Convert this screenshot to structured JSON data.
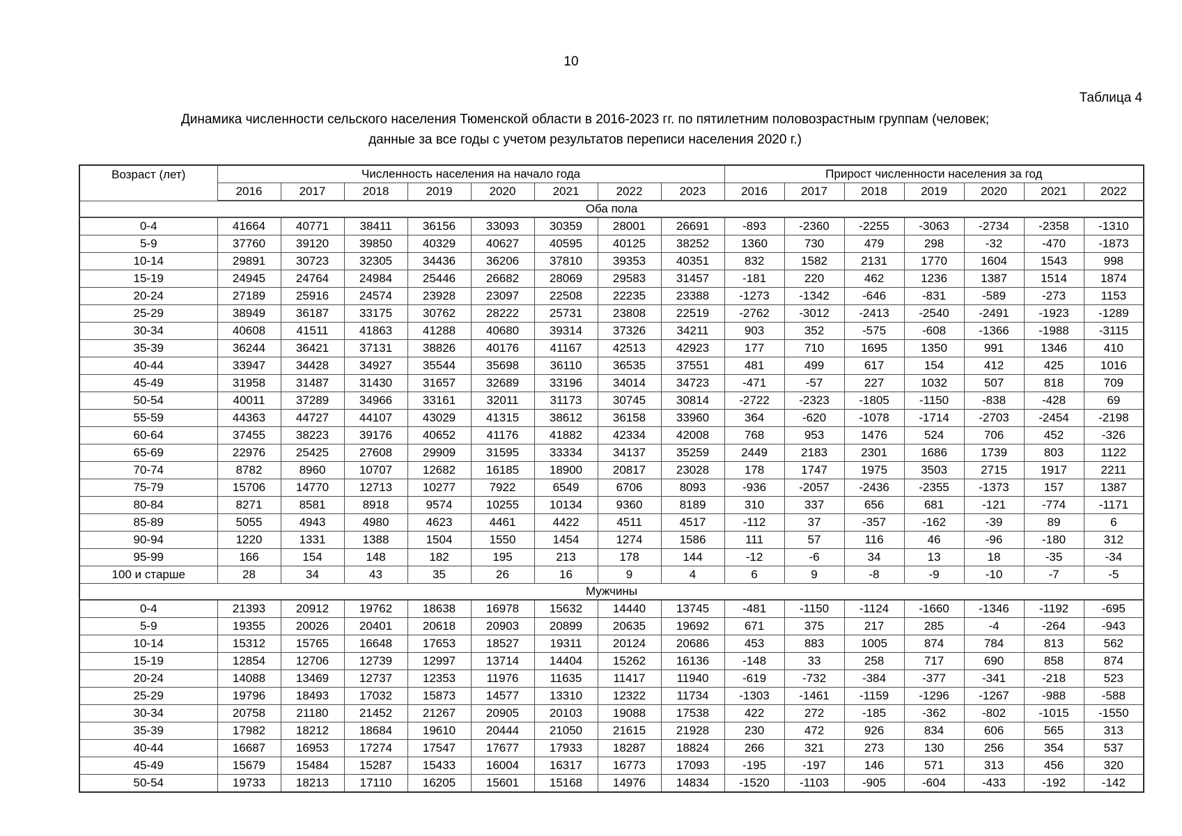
{
  "page": {
    "number": "10",
    "table_label": "Таблица 4",
    "title_line1": "Динамика численности сельского населения Тюменской области в 2016-2023 гг. по пятилетним половозрастным группам (человек;",
    "title_line2": "данные за все годы с учетом результатов переписи населения 2020 г.)"
  },
  "table": {
    "age_header": "Возраст (лет)",
    "population_group_header": "Численность населения на начало года",
    "growth_group_header": "Прирост численности населения за год",
    "population_years": [
      "2016",
      "2017",
      "2018",
      "2019",
      "2020",
      "2021",
      "2022",
      "2023"
    ],
    "growth_years": [
      "2016",
      "2017",
      "2018",
      "2019",
      "2020",
      "2021",
      "2022"
    ],
    "sections": [
      {
        "label": "Оба пола",
        "rows": [
          {
            "age": "0-4",
            "population": [
              41664,
              40771,
              38411,
              36156,
              33093,
              30359,
              28001,
              26691
            ],
            "growth": [
              -893,
              -2360,
              -2255,
              -3063,
              -2734,
              -2358,
              -1310
            ]
          },
          {
            "age": "5-9",
            "population": [
              37760,
              39120,
              39850,
              40329,
              40627,
              40595,
              40125,
              38252
            ],
            "growth": [
              1360,
              730,
              479,
              298,
              -32,
              -470,
              -1873
            ]
          },
          {
            "age": "10-14",
            "population": [
              29891,
              30723,
              32305,
              34436,
              36206,
              37810,
              39353,
              40351
            ],
            "growth": [
              832,
              1582,
              2131,
              1770,
              1604,
              1543,
              998
            ]
          },
          {
            "age": "15-19",
            "population": [
              24945,
              24764,
              24984,
              25446,
              26682,
              28069,
              29583,
              31457
            ],
            "growth": [
              -181,
              220,
              462,
              1236,
              1387,
              1514,
              1874
            ]
          },
          {
            "age": "20-24",
            "population": [
              27189,
              25916,
              24574,
              23928,
              23097,
              22508,
              22235,
              23388
            ],
            "growth": [
              -1273,
              -1342,
              -646,
              -831,
              -589,
              -273,
              1153
            ]
          },
          {
            "age": "25-29",
            "population": [
              38949,
              36187,
              33175,
              30762,
              28222,
              25731,
              23808,
              22519
            ],
            "growth": [
              -2762,
              -3012,
              -2413,
              -2540,
              -2491,
              -1923,
              -1289
            ]
          },
          {
            "age": "30-34",
            "population": [
              40608,
              41511,
              41863,
              41288,
              40680,
              39314,
              37326,
              34211
            ],
            "growth": [
              903,
              352,
              -575,
              -608,
              -1366,
              -1988,
              -3115
            ]
          },
          {
            "age": "35-39",
            "population": [
              36244,
              36421,
              37131,
              38826,
              40176,
              41167,
              42513,
              42923
            ],
            "growth": [
              177,
              710,
              1695,
              1350,
              991,
              1346,
              410
            ]
          },
          {
            "age": "40-44",
            "population": [
              33947,
              34428,
              34927,
              35544,
              35698,
              36110,
              36535,
              37551
            ],
            "growth": [
              481,
              499,
              617,
              154,
              412,
              425,
              1016
            ]
          },
          {
            "age": "45-49",
            "population": [
              31958,
              31487,
              31430,
              31657,
              32689,
              33196,
              34014,
              34723
            ],
            "growth": [
              -471,
              -57,
              227,
              1032,
              507,
              818,
              709
            ]
          },
          {
            "age": "50-54",
            "population": [
              40011,
              37289,
              34966,
              33161,
              32011,
              31173,
              30745,
              30814
            ],
            "growth": [
              -2722,
              -2323,
              -1805,
              -1150,
              -838,
              -428,
              69
            ]
          },
          {
            "age": "55-59",
            "population": [
              44363,
              44727,
              44107,
              43029,
              41315,
              38612,
              36158,
              33960
            ],
            "growth": [
              364,
              -620,
              -1078,
              -1714,
              -2703,
              -2454,
              -2198
            ]
          },
          {
            "age": "60-64",
            "population": [
              37455,
              38223,
              39176,
              40652,
              41176,
              41882,
              42334,
              42008
            ],
            "growth": [
              768,
              953,
              1476,
              524,
              706,
              452,
              -326
            ]
          },
          {
            "age": "65-69",
            "population": [
              22976,
              25425,
              27608,
              29909,
              31595,
              33334,
              34137,
              35259
            ],
            "growth": [
              2449,
              2183,
              2301,
              1686,
              1739,
              803,
              1122
            ]
          },
          {
            "age": "70-74",
            "population": [
              8782,
              8960,
              10707,
              12682,
              16185,
              18900,
              20817,
              23028
            ],
            "growth": [
              178,
              1747,
              1975,
              3503,
              2715,
              1917,
              2211
            ]
          },
          {
            "age": "75-79",
            "population": [
              15706,
              14770,
              12713,
              10277,
              7922,
              6549,
              6706,
              8093
            ],
            "growth": [
              -936,
              -2057,
              -2436,
              -2355,
              -1373,
              157,
              1387
            ]
          },
          {
            "age": "80-84",
            "population": [
              8271,
              8581,
              8918,
              9574,
              10255,
              10134,
              9360,
              8189
            ],
            "growth": [
              310,
              337,
              656,
              681,
              -121,
              -774,
              -1171
            ]
          },
          {
            "age": "85-89",
            "population": [
              5055,
              4943,
              4980,
              4623,
              4461,
              4422,
              4511,
              4517
            ],
            "growth": [
              -112,
              37,
              -357,
              -162,
              -39,
              89,
              6
            ]
          },
          {
            "age": "90-94",
            "population": [
              1220,
              1331,
              1388,
              1504,
              1550,
              1454,
              1274,
              1586
            ],
            "growth": [
              111,
              57,
              116,
              46,
              -96,
              -180,
              312
            ]
          },
          {
            "age": "95-99",
            "population": [
              166,
              154,
              148,
              182,
              195,
              213,
              178,
              144
            ],
            "growth": [
              -12,
              -6,
              34,
              13,
              18,
              -35,
              -34
            ]
          },
          {
            "age": "100 и старше",
            "population": [
              28,
              34,
              43,
              35,
              26,
              16,
              9,
              4
            ],
            "growth": [
              6,
              9,
              -8,
              -9,
              -10,
              -7,
              -5
            ]
          }
        ]
      },
      {
        "label": "Мужчины",
        "rows": [
          {
            "age": "0-4",
            "population": [
              21393,
              20912,
              19762,
              18638,
              16978,
              15632,
              14440,
              13745
            ],
            "growth": [
              -481,
              -1150,
              -1124,
              -1660,
              -1346,
              -1192,
              -695
            ]
          },
          {
            "age": "5-9",
            "population": [
              19355,
              20026,
              20401,
              20618,
              20903,
              20899,
              20635,
              19692
            ],
            "growth": [
              671,
              375,
              217,
              285,
              -4,
              -264,
              -943
            ]
          },
          {
            "age": "10-14",
            "population": [
              15312,
              15765,
              16648,
              17653,
              18527,
              19311,
              20124,
              20686
            ],
            "growth": [
              453,
              883,
              1005,
              874,
              784,
              813,
              562
            ]
          },
          {
            "age": "15-19",
            "population": [
              12854,
              12706,
              12739,
              12997,
              13714,
              14404,
              15262,
              16136
            ],
            "growth": [
              -148,
              33,
              258,
              717,
              690,
              858,
              874
            ]
          },
          {
            "age": "20-24",
            "population": [
              14088,
              13469,
              12737,
              12353,
              11976,
              11635,
              11417,
              11940
            ],
            "growth": [
              -619,
              -732,
              -384,
              -377,
              -341,
              -218,
              523
            ]
          },
          {
            "age": "25-29",
            "population": [
              19796,
              18493,
              17032,
              15873,
              14577,
              13310,
              12322,
              11734
            ],
            "growth": [
              -1303,
              -1461,
              -1159,
              -1296,
              -1267,
              -988,
              -588
            ]
          },
          {
            "age": "30-34",
            "population": [
              20758,
              21180,
              21452,
              21267,
              20905,
              20103,
              19088,
              17538
            ],
            "growth": [
              422,
              272,
              -185,
              -362,
              -802,
              -1015,
              -1550
            ]
          },
          {
            "age": "35-39",
            "population": [
              17982,
              18212,
              18684,
              19610,
              20444,
              21050,
              21615,
              21928
            ],
            "growth": [
              230,
              472,
              926,
              834,
              606,
              565,
              313
            ]
          },
          {
            "age": "40-44",
            "population": [
              16687,
              16953,
              17274,
              17547,
              17677,
              17933,
              18287,
              18824
            ],
            "growth": [
              266,
              321,
              273,
              130,
              256,
              354,
              537
            ]
          },
          {
            "age": "45-49",
            "population": [
              15679,
              15484,
              15287,
              15433,
              16004,
              16317,
              16773,
              17093
            ],
            "growth": [
              -195,
              -197,
              146,
              571,
              313,
              456,
              320
            ]
          },
          {
            "age": "50-54",
            "population": [
              19733,
              18213,
              17110,
              16205,
              15601,
              15168,
              14976,
              14834
            ],
            "growth": [
              -1520,
              -1103,
              -905,
              -604,
              -433,
              -192,
              -142
            ]
          }
        ]
      }
    ]
  }
}
